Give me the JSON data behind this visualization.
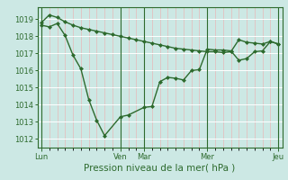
{
  "xlabel": "Pression niveau de la mer( hPa )",
  "bg_color": "#cce8e4",
  "grid_color": "#ffffff",
  "line_color": "#2d6a2d",
  "ylim": [
    1011.5,
    1019.7
  ],
  "yticks": [
    1012,
    1013,
    1014,
    1015,
    1016,
    1017,
    1018,
    1019
  ],
  "xtick_labels": [
    "Lun",
    "Ven",
    "Mar",
    "Mer",
    "Jeu"
  ],
  "xtick_positions": [
    0,
    10,
    13,
    21,
    30
  ],
  "vline_positions": [
    0,
    10,
    13,
    21,
    30
  ],
  "line1_x": [
    0,
    1,
    2,
    3,
    4,
    5,
    6,
    7,
    8,
    9,
    10,
    11,
    12,
    13,
    14,
    15,
    16,
    17,
    18,
    19,
    20,
    21,
    22,
    23,
    24,
    25,
    26,
    27,
    28,
    29,
    30
  ],
  "line1_y": [
    1018.8,
    1019.25,
    1019.1,
    1018.85,
    1018.65,
    1018.5,
    1018.4,
    1018.3,
    1018.2,
    1018.1,
    1018.0,
    1017.9,
    1017.8,
    1017.7,
    1017.6,
    1017.5,
    1017.4,
    1017.3,
    1017.25,
    1017.2,
    1017.15,
    1017.1,
    1017.1,
    1017.05,
    1017.1,
    1017.8,
    1017.65,
    1017.6,
    1017.55,
    1017.7,
    1017.55
  ],
  "line2_x": [
    0,
    1,
    2,
    3,
    4,
    5,
    6,
    7,
    8,
    10,
    11,
    13,
    14,
    15,
    16,
    17,
    18,
    19,
    20,
    21,
    22,
    23,
    24,
    25,
    26,
    27,
    28,
    29,
    30
  ],
  "line2_y": [
    1018.65,
    1018.55,
    1018.75,
    1018.05,
    1016.9,
    1016.1,
    1014.3,
    1013.1,
    1012.2,
    1013.3,
    1013.4,
    1013.85,
    1013.9,
    1015.35,
    1015.6,
    1015.55,
    1015.45,
    1016.0,
    1016.05,
    1017.25,
    1017.2,
    1017.2,
    1017.15,
    1016.6,
    1016.7,
    1017.1,
    1017.15,
    1017.7,
    1017.55
  ],
  "marker": "D",
  "markersize": 2.0,
  "linewidth": 1.0,
  "tick_fontsize": 6.0,
  "xlabel_fontsize": 7.5
}
